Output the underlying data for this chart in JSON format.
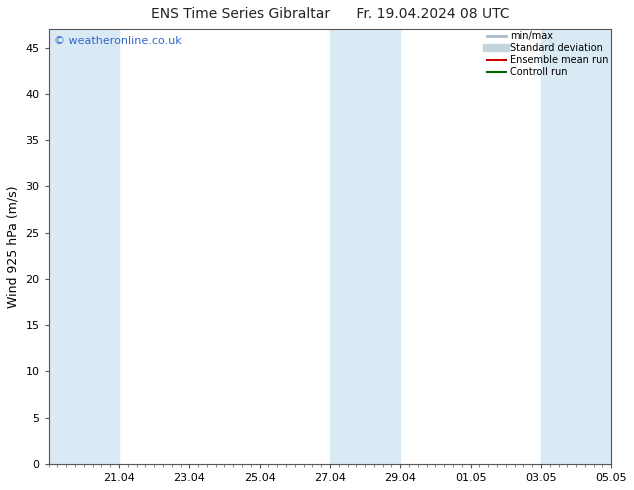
{
  "title": "ENS Time Series Gibraltar      Fr. 19.04.2024 08 UTC",
  "ylabel": "Wind 925 hPa (m/s)",
  "watermark": "© weatheronline.co.uk",
  "ylim": [
    0,
    47
  ],
  "yticks": [
    0,
    5,
    10,
    15,
    20,
    25,
    30,
    35,
    40,
    45
  ],
  "xlim": [
    0,
    16
  ],
  "xtick_positions": [
    2,
    4,
    6,
    8,
    10,
    12,
    14,
    16
  ],
  "xtick_labels": [
    "21.04",
    "23.04",
    "25.04",
    "27.04",
    "29.04",
    "01.05",
    "03.05",
    "05.05"
  ],
  "shaded_bands": [
    [
      0,
      1
    ],
    [
      1,
      2
    ],
    [
      8,
      9
    ],
    [
      9,
      10
    ],
    [
      15,
      16
    ]
  ],
  "shaded_color": "#daeaf5",
  "bg_color": "#ffffff",
  "legend_entries": [
    {
      "label": "min/max",
      "color": "#aabbcc",
      "lw": 2
    },
    {
      "label": "Standard deviation",
      "color": "#c5d5e0",
      "lw": 6
    },
    {
      "label": "Ensemble mean run",
      "color": "#cc0000",
      "lw": 1.5
    },
    {
      "label": "Controll run",
      "color": "#006600",
      "lw": 1.5
    }
  ],
  "title_fontsize": 10,
  "axis_label_fontsize": 9,
  "tick_fontsize": 8,
  "watermark_color": "#3366cc",
  "watermark_fontsize": 8
}
